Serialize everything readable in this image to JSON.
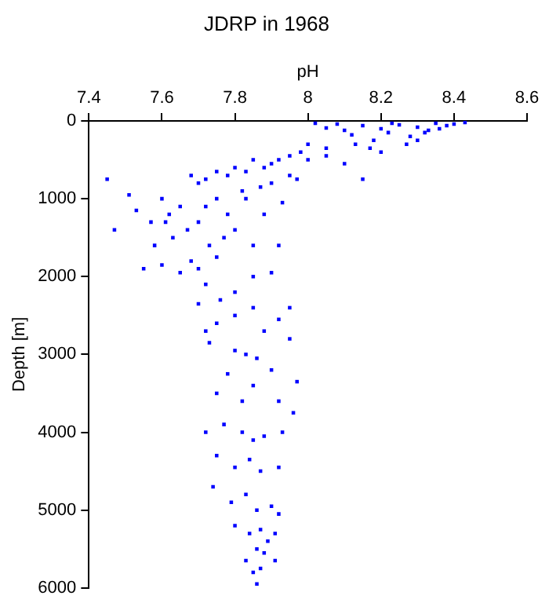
{
  "chart_data": {
    "type": "scatter",
    "title": "JDRP in 1968",
    "xlabel": "pH",
    "ylabel": "Depth [m]",
    "xlim": [
      7.4,
      8.6
    ],
    "xticks": [
      7.4,
      7.6,
      7.8,
      8,
      8.2,
      8.4,
      8.6
    ],
    "ylim": [
      6000,
      0
    ],
    "yticks": [
      0,
      1000,
      2000,
      3000,
      4000,
      5000,
      6000
    ],
    "grid": false,
    "marker": "square",
    "legend": false,
    "series": [
      {
        "color": "#0000ff",
        "x": [
          8.43,
          8.4,
          8.38,
          8.35,
          8.33,
          8.3,
          8.28,
          8.25,
          8.22,
          8.2,
          8.18,
          8.15,
          8.12,
          8.1,
          8.08,
          8.05,
          8.27,
          8.32,
          8.17,
          8.23,
          8.13,
          8.36,
          8.02,
          8.3,
          8.2,
          8.05,
          8.0,
          7.98,
          7.95,
          7.92,
          7.9,
          7.88,
          7.85,
          7.83,
          7.8,
          7.78,
          7.75,
          7.72,
          7.7,
          7.68,
          8.0,
          7.95,
          8.1,
          8.15,
          7.9,
          7.97,
          8.05,
          7.82,
          7.87,
          7.45,
          7.51,
          7.53,
          7.47,
          7.57,
          7.6,
          7.62,
          7.65,
          7.63,
          7.58,
          7.67,
          7.7,
          7.72,
          7.75,
          7.78,
          7.8,
          7.73,
          7.68,
          7.7,
          7.75,
          7.65,
          7.85,
          7.88,
          7.83,
          7.77,
          7.55,
          7.6,
          7.72,
          7.8,
          7.9,
          7.92,
          7.85,
          7.76,
          7.7,
          7.93,
          7.61,
          7.72,
          7.75,
          7.8,
          7.85,
          7.88,
          7.92,
          7.95,
          7.73,
          7.8,
          7.83,
          7.86,
          7.9,
          7.95,
          7.97,
          7.78,
          7.75,
          7.82,
          7.85,
          7.92,
          7.96,
          7.72,
          7.77,
          7.82,
          7.85,
          7.88,
          7.93,
          7.75,
          7.8,
          7.84,
          7.87,
          7.92,
          7.74,
          7.79,
          7.83,
          7.86,
          7.9,
          7.92,
          7.8,
          7.84,
          7.87,
          7.91,
          7.86,
          7.89,
          7.83,
          7.85,
          7.87,
          7.86,
          7.91,
          7.88
        ],
        "values": [
          20,
          40,
          60,
          30,
          120,
          80,
          200,
          50,
          150,
          100,
          250,
          60,
          180,
          120,
          40,
          90,
          300,
          150,
          350,
          30,
          300,
          100,
          30,
          250,
          400,
          350,
          300,
          400,
          450,
          500,
          550,
          600,
          500,
          650,
          600,
          700,
          650,
          750,
          800,
          700,
          500,
          700,
          550,
          750,
          800,
          750,
          450,
          900,
          850,
          750,
          950,
          1150,
          1400,
          1300,
          1000,
          1200,
          1100,
          1500,
          1600,
          1400,
          1300,
          1100,
          1000,
          1200,
          1400,
          1600,
          1800,
          1900,
          1750,
          1950,
          1600,
          1200,
          1000,
          1500,
          1900,
          1850,
          2100,
          2200,
          1950,
          1600,
          2000,
          2300,
          2350,
          1050,
          1300,
          2700,
          2600,
          2500,
          2400,
          2700,
          2550,
          2400,
          2850,
          2950,
          3000,
          3050,
          3200,
          2800,
          3350,
          3250,
          3500,
          3600,
          3400,
          3600,
          3750,
          4000,
          3900,
          4000,
          4100,
          4050,
          4000,
          4300,
          4450,
          4350,
          4500,
          4450,
          4700,
          4900,
          4800,
          5000,
          4950,
          5050,
          5200,
          5300,
          5250,
          5300,
          5500,
          5400,
          5650,
          5800,
          5750,
          5950,
          5650,
          5550
        ]
      }
    ]
  }
}
